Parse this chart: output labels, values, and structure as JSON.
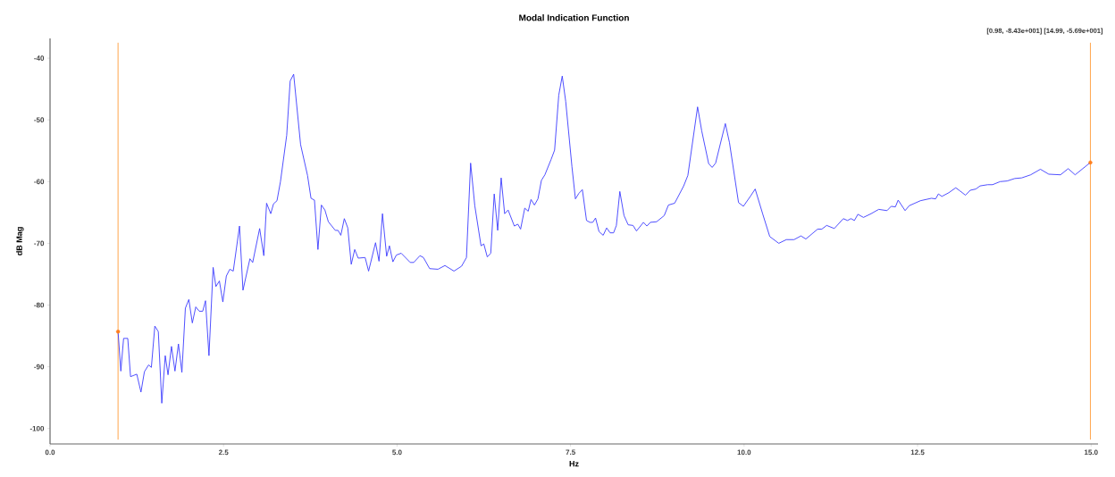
{
  "chart_data": {
    "type": "line",
    "title": "Modal Indication Function",
    "xlabel": "Hz",
    "ylabel": "dB Mag",
    "annotations": [
      "[0.98, -8.43e+001] [14.99, -5.69e+001]"
    ],
    "xlim": [
      0,
      15.1
    ],
    "ylim": [
      -102.5,
      -36.8
    ],
    "xticks": [
      {
        "value": 0,
        "label": "0.0"
      },
      {
        "value": 2.5,
        "label": "2.5"
      },
      {
        "value": 5,
        "label": "5.0"
      },
      {
        "value": 7.5,
        "label": "7.5"
      },
      {
        "value": 10,
        "label": "10.0"
      },
      {
        "value": 12.5,
        "label": "12.5"
      },
      {
        "value": 15,
        "label": "15.0"
      }
    ],
    "yticks": [
      -40,
      -50,
      -60,
      -70,
      -80,
      -90,
      -100
    ],
    "grid": false,
    "ref_lines": [
      {
        "axis": "x",
        "value": 0.98,
        "color": "#ffa64d"
      },
      {
        "axis": "x",
        "value": 14.99,
        "color": "#ffa64d"
      }
    ],
    "series": [
      {
        "color": "#3c3cff",
        "marker": "none",
        "line_style": "solid",
        "x": [
          0.98,
          1.02,
          1.06,
          1.12,
          1.16,
          1.25,
          1.31,
          1.36,
          1.42,
          1.46,
          1.51,
          1.56,
          1.61,
          1.66,
          1.7,
          1.75,
          1.8,
          1.85,
          1.9,
          1.95,
          2.0,
          2.05,
          2.1,
          2.15,
          2.2,
          2.24,
          2.29,
          2.35,
          2.39,
          2.44,
          2.49,
          2.54,
          2.59,
          2.64,
          2.73,
          2.78,
          2.88,
          2.92,
          3.02,
          3.08,
          3.12,
          3.18,
          3.22,
          3.27,
          3.32,
          3.41,
          3.46,
          3.51,
          3.61,
          3.71,
          3.76,
          3.81,
          3.86,
          3.91,
          3.96,
          4.01,
          4.11,
          4.15,
          4.19,
          4.24,
          4.29,
          4.34,
          4.39,
          4.44,
          4.54,
          4.59,
          4.69,
          4.74,
          4.79,
          4.85,
          4.89,
          4.94,
          4.99,
          5.06,
          5.19,
          5.24,
          5.33,
          5.38,
          5.47,
          5.59,
          5.69,
          5.82,
          5.93,
          6.0,
          6.06,
          6.12,
          6.21,
          6.25,
          6.3,
          6.35,
          6.4,
          6.45,
          6.5,
          6.55,
          6.6,
          6.69,
          6.74,
          6.78,
          6.84,
          6.89,
          6.93,
          6.98,
          7.03,
          7.08,
          7.13,
          7.22,
          7.27,
          7.33,
          7.38,
          7.43,
          7.52,
          7.57,
          7.62,
          7.67,
          7.73,
          7.78,
          7.82,
          7.86,
          7.91,
          7.97,
          8.02,
          8.07,
          8.12,
          8.16,
          8.21,
          8.27,
          8.33,
          8.4,
          8.45,
          8.55,
          8.6,
          8.65,
          8.74,
          8.85,
          8.91,
          9.0,
          9.13,
          9.19,
          9.33,
          9.39,
          9.49,
          9.54,
          9.59,
          9.73,
          9.79,
          9.92,
          9.99,
          10.09,
          10.16,
          10.27,
          10.37,
          10.5,
          10.61,
          10.72,
          10.82,
          10.89,
          11.06,
          11.12,
          11.19,
          11.3,
          11.43,
          11.49,
          11.54,
          11.59,
          11.64,
          11.72,
          11.83,
          11.94,
          12.06,
          12.12,
          12.18,
          12.22,
          12.32,
          12.38,
          12.54,
          12.7,
          12.76,
          12.8,
          12.85,
          12.95,
          13.05,
          13.11,
          13.19,
          13.26,
          13.34,
          13.4,
          13.51,
          13.58,
          13.69,
          13.79,
          13.9,
          14.0,
          14.13,
          14.27,
          14.39,
          14.56,
          14.67,
          14.77,
          14.99
        ],
        "values": [
          -84.3,
          -90.7,
          -85.4,
          -85.4,
          -91.6,
          -91.2,
          -94.1,
          -90.8,
          -89.7,
          -90.1,
          -83.4,
          -84.3,
          -95.9,
          -88.2,
          -91.3,
          -86.7,
          -90.7,
          -86.3,
          -90.9,
          -80.5,
          -79.1,
          -82.9,
          -80.3,
          -81.0,
          -81.0,
          -79.3,
          -88.2,
          -73.9,
          -77.0,
          -76.1,
          -79.5,
          -75.3,
          -74.2,
          -74.5,
          -67.2,
          -77.6,
          -72.5,
          -73.1,
          -67.6,
          -72.0,
          -63.5,
          -65.2,
          -63.6,
          -63.1,
          -60.0,
          -52.5,
          -43.7,
          -42.6,
          -54.0,
          -59.0,
          -62.7,
          -63.0,
          -71.0,
          -63.8,
          -64.6,
          -66.5,
          -67.9,
          -67.9,
          -68.7,
          -66.0,
          -67.5,
          -73.4,
          -71.0,
          -72.4,
          -72.3,
          -74.5,
          -69.9,
          -72.9,
          -65.2,
          -72.1,
          -70.4,
          -73.0,
          -71.9,
          -71.6,
          -73.1,
          -73.1,
          -72.0,
          -72.3,
          -74.1,
          -74.2,
          -73.6,
          -74.5,
          -73.7,
          -72.3,
          -57.0,
          -63.9,
          -70.4,
          -70.1,
          -72.2,
          -71.6,
          -62.0,
          -67.9,
          -59.4,
          -65.2,
          -64.6,
          -67.2,
          -66.9,
          -67.7,
          -64.3,
          -64.8,
          -62.9,
          -63.8,
          -62.8,
          -59.8,
          -58.9,
          -56.4,
          -54.9,
          -46.0,
          -42.9,
          -47.0,
          -57.6,
          -62.8,
          -61.9,
          -61.3,
          -66.3,
          -66.6,
          -66.6,
          -65.9,
          -68.1,
          -68.7,
          -67.5,
          -68.3,
          -68.3,
          -67.1,
          -61.6,
          -65.5,
          -67.0,
          -67.1,
          -68.0,
          -66.6,
          -67.2,
          -66.6,
          -66.5,
          -65.5,
          -63.8,
          -63.5,
          -60.7,
          -59.0,
          -47.9,
          -51.8,
          -57.1,
          -57.7,
          -57.0,
          -50.6,
          -53.7,
          -63.4,
          -64.0,
          -62.4,
          -61.2,
          -65.3,
          -68.9,
          -70.0,
          -69.4,
          -69.4,
          -68.8,
          -69.3,
          -67.7,
          -67.7,
          -67.1,
          -67.6,
          -66.0,
          -66.3,
          -66.0,
          -66.3,
          -65.3,
          -65.8,
          -65.2,
          -64.5,
          -64.7,
          -64.0,
          -64.1,
          -63.0,
          -64.7,
          -63.9,
          -63.1,
          -62.7,
          -62.8,
          -62.0,
          -62.4,
          -61.8,
          -61.0,
          -61.5,
          -62.2,
          -61.4,
          -61.2,
          -60.7,
          -60.5,
          -60.5,
          -60.0,
          -59.9,
          -59.5,
          -59.4,
          -58.9,
          -58.0,
          -58.8,
          -58.9,
          -57.9,
          -58.9,
          -56.9
        ]
      },
      {
        "type": "scatter",
        "color": "#ff7f1e",
        "marker": "circle",
        "x": [
          0.98,
          14.99
        ],
        "values": [
          -84.3,
          -56.9
        ]
      }
    ]
  }
}
